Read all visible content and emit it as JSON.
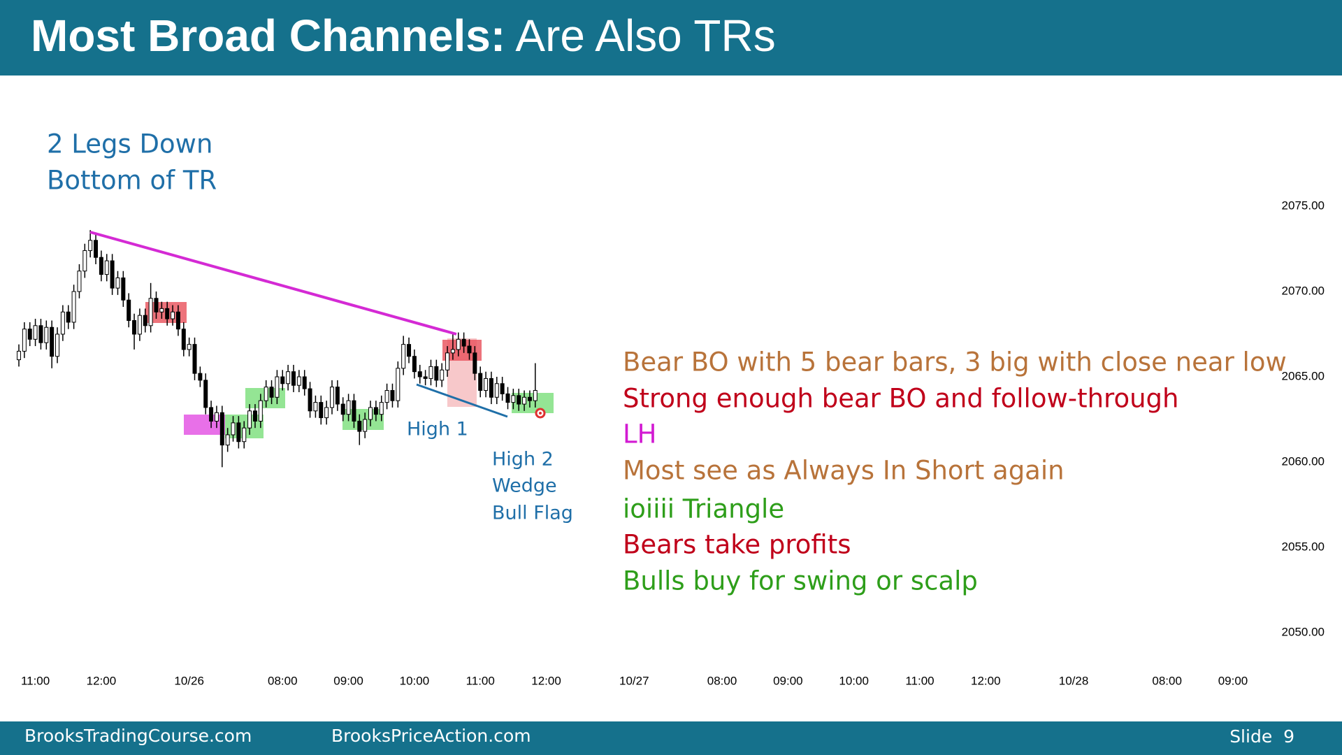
{
  "chart_data": {
    "type": "candlestick",
    "title_parts": [
      "Most Broad Channels:",
      "Are Also TRs"
    ],
    "x": [
      0,
      1,
      2,
      3,
      4,
      5,
      6,
      7,
      8,
      9,
      10,
      11,
      12,
      13,
      14,
      15,
      16,
      17,
      18,
      19,
      20,
      21,
      22,
      23,
      24,
      25,
      26,
      27,
      28,
      29,
      30,
      31,
      32,
      33,
      34,
      35,
      36,
      37,
      38,
      39,
      40,
      41,
      42,
      43,
      44,
      45,
      46,
      47,
      48,
      49,
      50,
      51,
      52,
      53,
      54,
      55,
      56,
      57,
      58,
      59,
      60,
      61,
      62,
      63,
      64,
      65,
      66,
      67,
      68,
      69,
      70,
      71,
      72,
      73,
      74,
      75,
      76,
      77,
      78,
      79,
      80,
      81,
      82,
      83,
      84,
      85,
      86,
      87,
      88,
      89,
      90,
      91,
      92,
      93,
      94
    ],
    "open": [
      2066.0,
      2066.5,
      2067.8,
      2067.2,
      2068.0,
      2067.0,
      2067.9,
      2066.2,
      2067.5,
      2068.8,
      2068.2,
      2070.0,
      2071.2,
      2072.4,
      2073.0,
      2072.0,
      2071.0,
      2071.8,
      2070.2,
      2070.8,
      2069.5,
      2068.3,
      2067.5,
      2068.6,
      2068.0,
      2069.6,
      2068.8,
      2069.0,
      2068.4,
      2068.8,
      2067.8,
      2066.6,
      2066.9,
      2065.2,
      2064.8,
      2063.2,
      2062.4,
      2062.9,
      2061.0,
      2061.6,
      2062.3,
      2061.2,
      2062.0,
      2063.0,
      2062.4,
      2063.6,
      2064.4,
      2063.8,
      2065.0,
      2064.6,
      2065.3,
      2064.5,
      2065.0,
      2064.3,
      2063.0,
      2063.5,
      2062.6,
      2063.2,
      2064.4,
      2063.4,
      2062.8,
      2063.6,
      2062.4,
      2061.8,
      2062.5,
      2063.2,
      2062.8,
      2063.5,
      2064.2,
      2063.6,
      2065.5,
      2066.9,
      2066.2,
      2065.3,
      2065.0,
      2064.9,
      2065.6,
      2064.8,
      2065.4,
      2066.4,
      2066.6,
      2067.2,
      2066.8,
      2066.4,
      2065.2,
      2064.2,
      2064.9,
      2063.8,
      2064.6,
      2064.0,
      2063.5,
      2063.9,
      2063.4,
      2063.8,
      2063.6
    ],
    "high": [
      2066.9,
      2068.2,
      2068.2,
      2068.4,
      2068.4,
      2068.3,
      2068.3,
      2067.9,
      2069.2,
      2069.2,
      2070.4,
      2071.6,
      2072.8,
      2073.6,
      2073.4,
      2072.4,
      2072.2,
      2072.2,
      2071.2,
      2071.2,
      2069.9,
      2068.7,
      2069.0,
      2069.0,
      2070.5,
      2070.0,
      2069.4,
      2069.4,
      2069.2,
      2069.2,
      2068.2,
      2067.3,
      2067.3,
      2065.6,
      2065.2,
      2063.6,
      2063.3,
      2063.3,
      2062.0,
      2062.7,
      2062.7,
      2062.4,
      2063.4,
      2063.4,
      2064.0,
      2064.8,
      2064.8,
      2065.4,
      2065.4,
      2065.7,
      2065.7,
      2065.4,
      2065.4,
      2064.7,
      2063.9,
      2063.9,
      2063.6,
      2064.8,
      2064.8,
      2063.8,
      2064.0,
      2064.0,
      2062.8,
      2062.9,
      2063.6,
      2063.6,
      2063.9,
      2064.6,
      2064.6,
      2065.9,
      2067.4,
      2067.3,
      2066.6,
      2065.7,
      2065.4,
      2066.0,
      2066.0,
      2065.8,
      2066.8,
      2067.5,
      2067.6,
      2067.6,
      2067.2,
      2066.8,
      2065.6,
      2065.3,
      2065.3,
      2065.0,
      2065.0,
      2064.4,
      2064.3,
      2064.3,
      2064.2,
      2064.2,
      2065.8
    ],
    "low": [
      2065.6,
      2066.1,
      2066.8,
      2066.8,
      2066.6,
      2066.6,
      2065.5,
      2065.8,
      2067.1,
      2067.8,
      2067.8,
      2069.6,
      2070.8,
      2072.0,
      2071.6,
      2070.6,
      2070.6,
      2069.8,
      2069.8,
      2069.1,
      2067.9,
      2066.6,
      2067.1,
      2067.6,
      2067.6,
      2068.4,
      2068.4,
      2068.0,
      2068.0,
      2067.4,
      2066.2,
      2066.2,
      2064.8,
      2064.4,
      2062.8,
      2062.0,
      2062.0,
      2059.7,
      2060.6,
      2061.2,
      2060.8,
      2060.8,
      2061.6,
      2062.0,
      2062.0,
      2063.2,
      2063.4,
      2063.4,
      2064.2,
      2064.2,
      2064.1,
      2064.1,
      2063.9,
      2062.6,
      2062.6,
      2062.2,
      2062.2,
      2062.8,
      2063.0,
      2062.4,
      2062.4,
      2062.0,
      2061.0,
      2061.4,
      2062.1,
      2062.4,
      2062.4,
      2063.1,
      2063.2,
      2063.2,
      2065.1,
      2065.8,
      2064.9,
      2064.6,
      2064.5,
      2064.5,
      2064.4,
      2064.4,
      2065.0,
      2066.0,
      2066.2,
      2066.4,
      2066.0,
      2064.8,
      2063.8,
      2063.8,
      2063.4,
      2063.4,
      2063.6,
      2063.1,
      2063.1,
      2063.0,
      2063.0,
      2063.2,
      2063.2
    ],
    "close": [
      2066.5,
      2067.8,
      2067.2,
      2068.0,
      2067.0,
      2067.9,
      2066.2,
      2067.5,
      2068.8,
      2068.2,
      2070.0,
      2071.2,
      2072.4,
      2073.0,
      2072.0,
      2071.0,
      2071.8,
      2070.2,
      2070.8,
      2069.5,
      2068.3,
      2067.5,
      2068.6,
      2068.0,
      2069.6,
      2068.8,
      2069.0,
      2068.4,
      2068.8,
      2067.8,
      2066.6,
      2066.9,
      2065.2,
      2064.8,
      2063.2,
      2062.4,
      2062.9,
      2061.0,
      2061.6,
      2062.3,
      2061.2,
      2062.0,
      2063.0,
      2062.4,
      2063.6,
      2064.4,
      2063.8,
      2065.0,
      2064.6,
      2065.3,
      2064.5,
      2065.0,
      2064.3,
      2063.0,
      2063.5,
      2062.6,
      2063.2,
      2064.4,
      2063.4,
      2062.8,
      2063.6,
      2062.4,
      2061.8,
      2062.5,
      2063.2,
      2062.8,
      2063.5,
      2064.2,
      2063.6,
      2065.5,
      2066.9,
      2066.2,
      2065.3,
      2065.0,
      2064.9,
      2065.6,
      2064.8,
      2065.4,
      2066.4,
      2066.6,
      2067.2,
      2066.8,
      2066.4,
      2065.2,
      2064.2,
      2064.9,
      2063.8,
      2064.6,
      2064.0,
      2063.5,
      2063.9,
      2063.4,
      2063.8,
      2063.6,
      2064.2
    ],
    "up_color": "#ffffff",
    "down_color": "#000000",
    "wick_color": "#000000",
    "xlim": [
      0,
      228
    ],
    "xticks": [
      {
        "value": 3,
        "label": "11:00"
      },
      {
        "value": 15,
        "label": "12:00"
      },
      {
        "value": 31,
        "label": "10/26"
      },
      {
        "value": 48,
        "label": "08:00"
      },
      {
        "value": 60,
        "label": "09:00"
      },
      {
        "value": 72,
        "label": "10:00"
      },
      {
        "value": 84,
        "label": "11:00"
      },
      {
        "value": 96,
        "label": "12:00"
      },
      {
        "value": 112,
        "label": "10/27"
      },
      {
        "value": 128,
        "label": "08:00"
      },
      {
        "value": 140,
        "label": "09:00"
      },
      {
        "value": 152,
        "label": "10:00"
      },
      {
        "value": 164,
        "label": "11:00"
      },
      {
        "value": 176,
        "label": "12:00"
      },
      {
        "value": 192,
        "label": "10/28"
      },
      {
        "value": 209,
        "label": "08:00"
      },
      {
        "value": 221,
        "label": "09:00"
      }
    ],
    "ylim": [
      2048,
      2081
    ],
    "yticks": [
      {
        "value": 2050,
        "label": "2050.00"
      },
      {
        "value": 2055,
        "label": "2055.00"
      },
      {
        "value": 2060,
        "label": "2060.00"
      },
      {
        "value": 2065,
        "label": "2065.00"
      },
      {
        "value": 2070,
        "label": "2070.00"
      },
      {
        "value": 2075,
        "label": "2075.00"
      }
    ],
    "annotations": [
      "2 Legs Down",
      "Bottom of TR",
      "High 1",
      "High 2",
      "Wedge",
      "Bull Flag"
    ],
    "notes": [
      "Bear BO with 5 bear bars, 3 big with close near low",
      "Strong enough bear BO and follow-through",
      "LH",
      "Most see as Always In Short again",
      "ioiiii Triangle",
      "Bears take profits",
      "Bulls buy for swing or scalp"
    ]
  },
  "footer": {
    "left": "BrooksTradingCourse.com",
    "middle": "BrooksPriceAction.com",
    "slide": "Slide  9"
  }
}
